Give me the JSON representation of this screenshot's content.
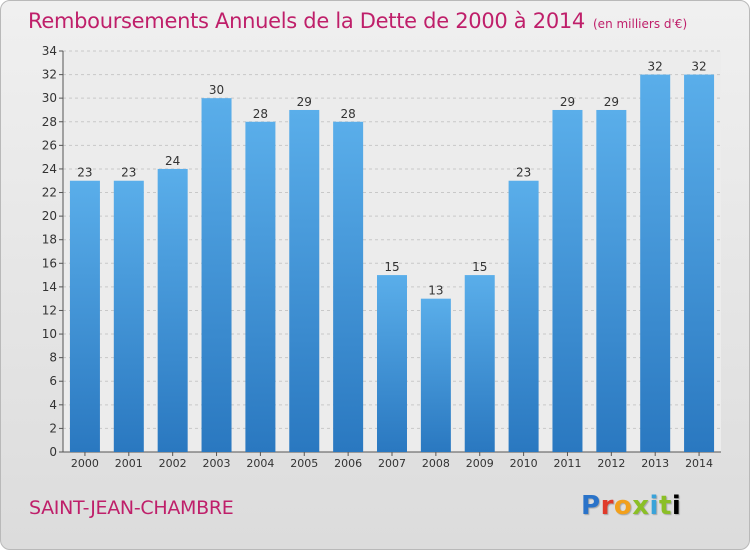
{
  "page": {
    "title_main": "Remboursements Annuels de la Dette de 2000 à 2014",
    "title_unit": "(en milliers d'€)",
    "commune": "SAINT-JEAN-CHAMBRE",
    "logo": "Proxiti"
  },
  "colors": {
    "bar_top": "#5aaeea",
    "bar_bottom": "#2a78c0",
    "accent": "#bf1f6a",
    "grid": "#c8c8c8"
  },
  "chart_data": {
    "type": "bar",
    "title": "Remboursements Annuels de la Dette de 2000 à 2014 (en milliers d'€)",
    "xlabel": "",
    "ylabel": "",
    "categories": [
      "2000",
      "2001",
      "2002",
      "2003",
      "2004",
      "2005",
      "2006",
      "2007",
      "2008",
      "2009",
      "2010",
      "2011",
      "2012",
      "2013",
      "2014"
    ],
    "values": [
      23,
      23,
      24,
      30,
      28,
      29,
      28,
      15,
      13,
      15,
      23,
      29,
      29,
      32,
      32
    ],
    "ylim": [
      0,
      34
    ],
    "yticks": [
      0,
      2,
      4,
      6,
      8,
      10,
      12,
      14,
      16,
      18,
      20,
      22,
      24,
      26,
      28,
      30,
      32,
      34
    ],
    "grid": true,
    "legend": "none"
  }
}
